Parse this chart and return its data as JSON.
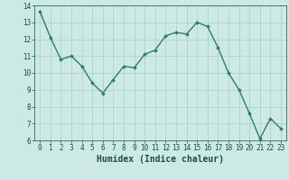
{
  "x": [
    0,
    1,
    2,
    3,
    4,
    5,
    6,
    7,
    8,
    9,
    10,
    11,
    12,
    13,
    14,
    15,
    16,
    17,
    18,
    19,
    20,
    21,
    22,
    23
  ],
  "y": [
    13.65,
    12.1,
    10.8,
    11.0,
    10.4,
    9.4,
    8.8,
    9.6,
    10.4,
    10.3,
    11.1,
    11.35,
    12.2,
    12.4,
    12.3,
    13.0,
    12.75,
    11.5,
    10.0,
    9.0,
    7.6,
    6.1,
    7.3,
    6.7
  ],
  "line_color": "#2d7d6e",
  "marker": "D",
  "markersize": 2.0,
  "linewidth": 1.0,
  "background_color": "#cce9e5",
  "grid_color": "#aaceca",
  "xlabel": "Humidex (Indice chaleur)",
  "xlabel_fontsize": 7,
  "xlabel_color": "#1a4d45",
  "tick_color": "#1a4d45",
  "xlim": [
    -0.5,
    23.5
  ],
  "ylim": [
    6,
    14
  ],
  "yticks": [
    6,
    7,
    8,
    9,
    10,
    11,
    12,
    13,
    14
  ],
  "xticks": [
    0,
    1,
    2,
    3,
    4,
    5,
    6,
    7,
    8,
    9,
    10,
    11,
    12,
    13,
    14,
    15,
    16,
    17,
    18,
    19,
    20,
    21,
    22,
    23
  ],
  "tick_fontsize": 5.5,
  "figsize": [
    3.2,
    2.0
  ],
  "dpi": 100
}
